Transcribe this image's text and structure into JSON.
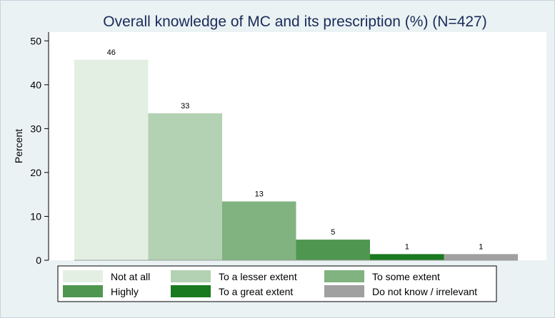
{
  "chart_data": {
    "type": "bar",
    "title": "Overall knowledge of MC and its prescription (%) (N=427)",
    "xlabel": "",
    "ylabel": "Percent",
    "ylim": [
      0,
      52
    ],
    "yticks": [
      0,
      10,
      20,
      30,
      40,
      50
    ],
    "grid": false,
    "legend_position": "bottom",
    "categories": [
      "Not at all",
      "To a lesser extent",
      "To some extent",
      "Highly",
      "To a great extent",
      "Do not know / irrelevant"
    ],
    "values": [
      46,
      33,
      13,
      5,
      1,
      1
    ],
    "value_labels": [
      "46",
      "33",
      "13",
      "5",
      "1",
      "1"
    ],
    "approx_values": [
      45.7,
      33.5,
      13.4,
      4.7,
      1.4,
      1.4
    ],
    "colors": [
      "#e4efe3",
      "#b3d2b3",
      "#80b380",
      "#4f9750",
      "#1a7a20",
      "#a0a0a0"
    ]
  }
}
